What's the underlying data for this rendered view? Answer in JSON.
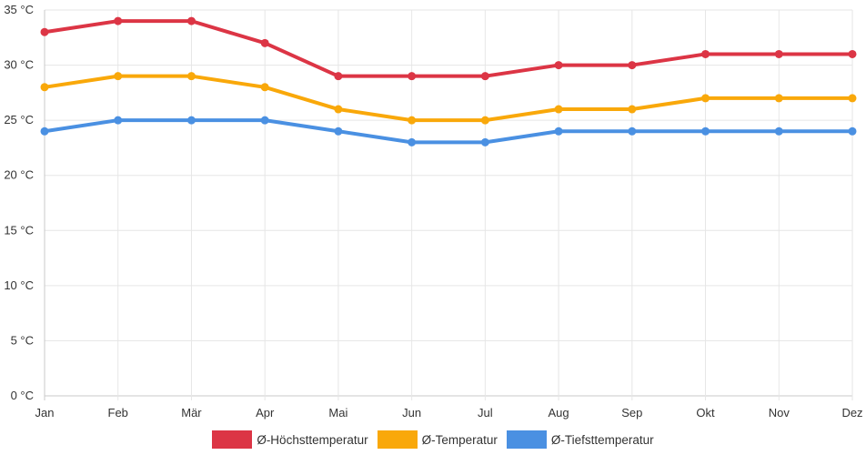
{
  "chart_data": {
    "type": "line",
    "categories": [
      "Jan",
      "Feb",
      "Mär",
      "Apr",
      "Mai",
      "Jun",
      "Jul",
      "Aug",
      "Sep",
      "Okt",
      "Nov",
      "Dez"
    ],
    "y_ticks": [
      "0 °C",
      "5 °C",
      "10 °C",
      "15 °C",
      "20 °C",
      "25 °C",
      "30 °C",
      "35 °C"
    ],
    "ylim": [
      0,
      35
    ],
    "grid": true,
    "legend_position": "bottom",
    "series": [
      {
        "name": "Ø-Höchsttemperatur",
        "color": "#dc3545",
        "values": [
          33,
          34,
          34,
          32,
          29,
          29,
          29,
          30,
          30,
          31,
          31,
          31
        ]
      },
      {
        "name": "Ø-Temperatur",
        "color": "#f9a80a",
        "values": [
          28,
          29,
          29,
          28,
          26,
          25,
          25,
          26,
          26,
          27,
          27,
          27
        ]
      },
      {
        "name": "Ø-Tiefsttemperatur",
        "color": "#4a90e2",
        "values": [
          24,
          25,
          25,
          25,
          24,
          23,
          23,
          24,
          24,
          24,
          24,
          24
        ]
      }
    ]
  }
}
